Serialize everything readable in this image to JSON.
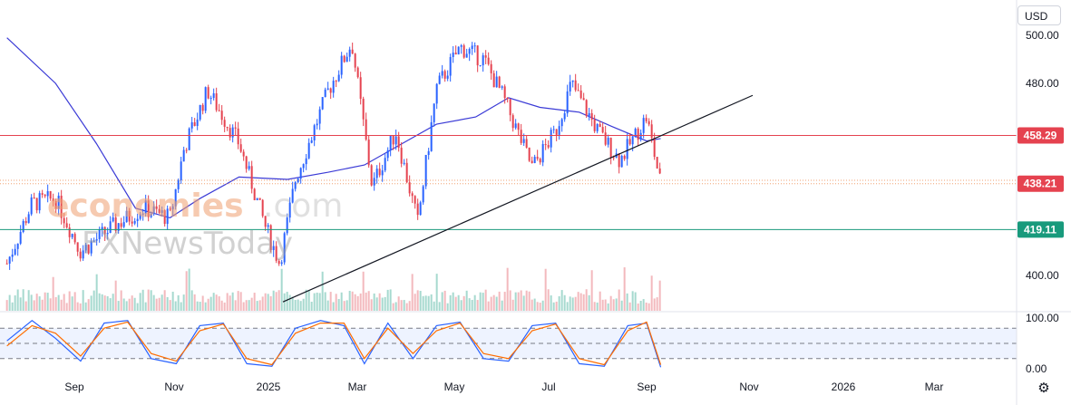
{
  "currency_label": "USD",
  "watermark": {
    "part1": "economies",
    "part2": ".com",
    "part3": "FXNewsToday"
  },
  "chart_data": [
    {
      "type": "candlestick",
      "title": "",
      "xlabel": "",
      "ylabel": "",
      "ylim": [
        392,
        505
      ],
      "x_tick_labels": [
        "Sep",
        "Nov",
        "2025",
        "Mar",
        "May",
        "Jul",
        "Sep",
        "Nov",
        "2026",
        "Mar"
      ],
      "y_tick_labels": [
        "500.00",
        "480.00",
        "400.00"
      ],
      "price_tags": [
        {
          "label": "458.29",
          "value": 458.29,
          "color": "#e5424f"
        },
        {
          "label": "438.21",
          "value": 438.21,
          "color": "#e5424f"
        },
        {
          "label": "419.11",
          "value": 419.11,
          "color": "#189a7c"
        }
      ],
      "horizontal_lines": [
        {
          "value": 458.29,
          "color": "#e5424f",
          "style": "solid"
        },
        {
          "value": 419.11,
          "color": "#189a7c",
          "style": "solid"
        },
        {
          "value": 438.21,
          "color": "#f0a070",
          "style": "dotted"
        },
        {
          "value": 439.6,
          "color": "#f0a070",
          "style": "dotted"
        }
      ],
      "trendline": {
        "from": [
          "2025-01",
          389
        ],
        "to": [
          "2025-11",
          475
        ],
        "color": "#131722"
      },
      "moving_average": {
        "color": "#3b3bd6",
        "points": [
          [
            "2024-07-20",
            499
          ],
          [
            "2024-08-20",
            480
          ],
          [
            "2024-09-15",
            455
          ],
          [
            "2024-10-10",
            428
          ],
          [
            "2024-11-01",
            424
          ],
          [
            "2024-11-20",
            432
          ],
          [
            "2024-12-15",
            441
          ],
          [
            "2025-01-15",
            440
          ],
          [
            "2025-02-10",
            443
          ],
          [
            "2025-03-05",
            446
          ],
          [
            "2025-04-01",
            456
          ],
          [
            "2025-04-20",
            463
          ],
          [
            "2025-05-15",
            466
          ],
          [
            "2025-06-05",
            474
          ],
          [
            "2025-06-25",
            470
          ],
          [
            "2025-07-20",
            468
          ],
          [
            "2025-08-10",
            462
          ],
          [
            "2025-09-01",
            456
          ],
          [
            "2025-09-10",
            457
          ]
        ]
      },
      "candle_path": [
        [
          "2024-07-20",
          405
        ],
        [
          "2024-08-05",
          430
        ],
        [
          "2024-08-20",
          432
        ],
        [
          "2024-09-05",
          410
        ],
        [
          "2024-09-25",
          420
        ],
        [
          "2024-10-15",
          428
        ],
        [
          "2024-11-01",
          424
        ],
        [
          "2024-11-10",
          453
        ],
        [
          "2024-11-25",
          477
        ],
        [
          "2024-12-15",
          455
        ],
        [
          "2025-01-01",
          420
        ],
        [
          "2025-01-10",
          405
        ],
        [
          "2025-01-20",
          440
        ],
        [
          "2025-02-10",
          477
        ],
        [
          "2025-02-25",
          497
        ],
        [
          "2025-03-10",
          437
        ],
        [
          "2025-03-25",
          460
        ],
        [
          "2025-04-08",
          422
        ],
        [
          "2025-04-20",
          478
        ],
        [
          "2025-05-05",
          495
        ],
        [
          "2025-05-20",
          490
        ],
        [
          "2025-06-01",
          475
        ],
        [
          "2025-06-20",
          445
        ],
        [
          "2025-07-05",
          460
        ],
        [
          "2025-07-15",
          480
        ],
        [
          "2025-08-01",
          460
        ],
        [
          "2025-08-15",
          448
        ],
        [
          "2025-09-01",
          466
        ],
        [
          "2025-09-10",
          438
        ]
      ],
      "volume": {
        "color_up": "#a6d9cf",
        "color_down": "#f3b9bd"
      }
    },
    {
      "type": "line",
      "title": "",
      "ylim": [
        0,
        100
      ],
      "y_tick_labels": [
        "100.00",
        "0.00"
      ],
      "band": [
        20,
        80
      ],
      "series": [
        {
          "values_x": [
            "2024-07-20",
            "2024-08-05",
            "2024-08-20",
            "2024-09-05",
            "2024-09-20",
            "2024-10-05",
            "2024-10-20",
            "2024-11-05",
            "2024-11-20",
            "2024-12-05",
            "2024-12-20",
            "2025-01-05",
            "2025-01-20",
            "2025-02-05",
            "2025-02-20",
            "2025-03-05",
            "2025-03-20",
            "2025-04-05",
            "2025-04-20",
            "2025-05-05",
            "2025-05-20",
            "2025-06-05",
            "2025-06-20",
            "2025-07-05",
            "2025-07-20",
            "2025-08-05",
            "2025-08-20",
            "2025-09-01",
            "2025-09-10"
          ],
          "values_y": [
            55,
            95,
            60,
            15,
            90,
            95,
            20,
            10,
            85,
            90,
            10,
            5,
            80,
            95,
            85,
            10,
            90,
            20,
            85,
            92,
            20,
            15,
            85,
            90,
            10,
            5,
            85,
            90,
            3
          ],
          "color": "#2962ff"
        },
        {
          "values_x": [
            "2024-07-20",
            "2024-08-05",
            "2024-08-20",
            "2024-09-05",
            "2024-09-20",
            "2024-10-05",
            "2024-10-20",
            "2024-11-05",
            "2024-11-20",
            "2024-12-05",
            "2024-12-20",
            "2025-01-05",
            "2025-01-20",
            "2025-02-05",
            "2025-02-20",
            "2025-03-05",
            "2025-03-20",
            "2025-04-05",
            "2025-04-20",
            "2025-05-05",
            "2025-05-20",
            "2025-06-05",
            "2025-06-20",
            "2025-07-05",
            "2025-07-20",
            "2025-08-05",
            "2025-08-20",
            "2025-09-01",
            "2025-09-10"
          ],
          "values_y": [
            45,
            85,
            70,
            25,
            80,
            92,
            30,
            15,
            75,
            88,
            20,
            8,
            70,
            90,
            90,
            20,
            80,
            30,
            75,
            90,
            30,
            20,
            75,
            88,
            20,
            8,
            75,
            92,
            8
          ],
          "color": "#ff6d00"
        }
      ]
    }
  ]
}
